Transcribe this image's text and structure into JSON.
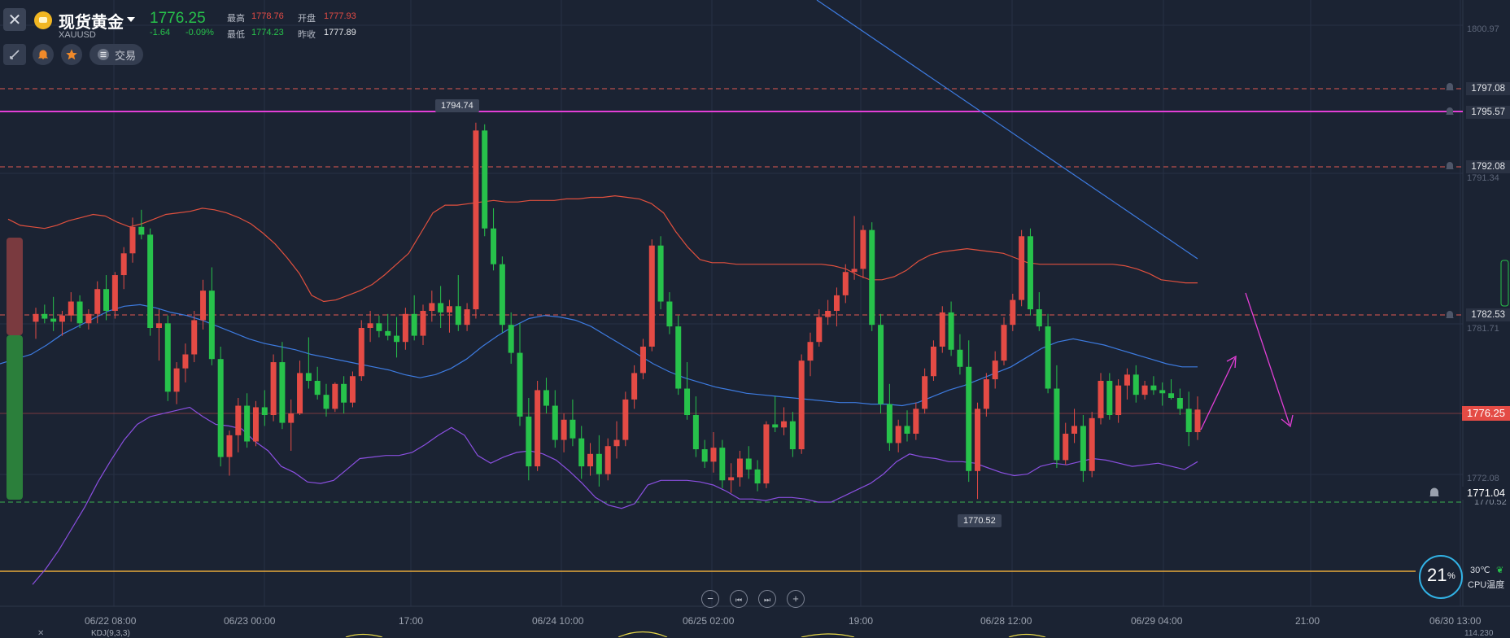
{
  "header": {
    "symbol_name": "现货黄金",
    "symbol_code": "XAUUSD",
    "last_price": "1776.25",
    "change": "-1.64",
    "change_pct": "-0.09%",
    "high_label": "最高",
    "high_value": "1778.76",
    "open_label": "开盘",
    "open_value": "1777.93",
    "low_label": "最低",
    "low_value": "1774.23",
    "prev_close_label": "昨收",
    "prev_close_value": "1777.89"
  },
  "toolbar": {
    "trade_label": "交易"
  },
  "price_axis": {
    "ticks": [
      "1800.97",
      "1791.34",
      "1781.71",
      "1772.08"
    ],
    "level_tags": [
      {
        "label": "1797.08",
        "style": "dashed",
        "color": "#e05a52"
      },
      {
        "label": "1795.57",
        "style": "solid",
        "color": "#e23fd6"
      },
      {
        "label": "1792.08",
        "style": "dashed",
        "color": "#e05a52"
      },
      {
        "label": "1782.53",
        "style": "dashed",
        "color": "#e05a52"
      },
      {
        "label": "1776.25",
        "style": "current",
        "color": "#e44b45"
      },
      {
        "label": "1771.04",
        "style": "dashed",
        "color": "#3bb24f"
      }
    ],
    "partial_tag": "1770.52"
  },
  "annotations": {
    "high_marker": "1794.74",
    "low_marker": "1770.52"
  },
  "time_axis": {
    "labels": [
      "06/22 08:00",
      "06/23 00:00",
      "17:00",
      "06/24 10:00",
      "06/25 02:00",
      "19:00",
      "06/28 12:00",
      "06/29 04:00",
      "21:00",
      "06/30 13:00"
    ]
  },
  "bottom_panel": {
    "indicator_label": "KDJ(9,3,3)",
    "right_value": "114.230"
  },
  "cpu": {
    "percent": "21",
    "percent_sign": "%",
    "temp": "30℃",
    "label": "CPU温度"
  },
  "colors": {
    "background": "#1b2333",
    "up": "#e44b45",
    "down": "#27c24b",
    "magenta": "#e23fd6",
    "upper_band": "#e0503e",
    "mid_band": "#3d7be0",
    "lower_band": "#8a4fe0"
  },
  "chart_data": {
    "type": "candlestick",
    "ylim": [
      1765.5,
      1803.0
    ],
    "candles": [
      [
        1781.9,
        1782.8,
        1780.8,
        1782.4
      ],
      [
        1782.4,
        1783.0,
        1781.8,
        1782.1
      ],
      [
        1782.1,
        1783.5,
        1781.3,
        1781.9
      ],
      [
        1781.9,
        1782.6,
        1781.0,
        1782.3
      ],
      [
        1782.3,
        1783.8,
        1781.9,
        1783.2
      ],
      [
        1783.2,
        1783.6,
        1781.5,
        1781.8
      ],
      [
        1781.8,
        1782.7,
        1781.4,
        1782.4
      ],
      [
        1782.4,
        1784.5,
        1781.8,
        1784.0
      ],
      [
        1784.0,
        1784.9,
        1782.0,
        1782.6
      ],
      [
        1782.6,
        1785.1,
        1782.1,
        1784.9
      ],
      [
        1784.9,
        1786.7,
        1784.0,
        1786.3
      ],
      [
        1786.3,
        1788.6,
        1785.7,
        1788.0
      ],
      [
        1788.0,
        1789.1,
        1787.2,
        1787.5
      ],
      [
        1787.5,
        1787.9,
        1781.0,
        1781.5
      ],
      [
        1781.5,
        1782.7,
        1779.4,
        1781.8
      ],
      [
        1781.8,
        1782.3,
        1776.8,
        1777.4
      ],
      [
        1777.4,
        1779.3,
        1776.6,
        1778.9
      ],
      [
        1778.9,
        1780.5,
        1778.0,
        1779.8
      ],
      [
        1779.8,
        1782.6,
        1779.3,
        1782.0
      ],
      [
        1782.0,
        1784.6,
        1781.4,
        1783.9
      ],
      [
        1783.9,
        1785.4,
        1779.1,
        1779.5
      ],
      [
        1779.5,
        1780.3,
        1772.6,
        1773.2
      ],
      [
        1773.2,
        1774.9,
        1772.0,
        1774.6
      ],
      [
        1774.6,
        1777.0,
        1773.5,
        1776.5
      ],
      [
        1776.5,
        1777.3,
        1773.8,
        1774.2
      ],
      [
        1774.2,
        1776.8,
        1773.9,
        1776.4
      ],
      [
        1776.4,
        1777.5,
        1775.2,
        1775.9
      ],
      [
        1775.9,
        1779.8,
        1775.5,
        1779.3
      ],
      [
        1779.3,
        1780.6,
        1775.0,
        1775.4
      ],
      [
        1775.4,
        1776.9,
        1773.6,
        1776.0
      ],
      [
        1776.0,
        1779.4,
        1775.9,
        1778.6
      ],
      [
        1778.6,
        1780.9,
        1777.6,
        1778.1
      ],
      [
        1778.1,
        1779.0,
        1776.9,
        1777.2
      ],
      [
        1777.2,
        1777.9,
        1775.8,
        1776.3
      ],
      [
        1776.3,
        1778.0,
        1776.1,
        1777.9
      ],
      [
        1777.9,
        1778.4,
        1776.0,
        1776.7
      ],
      [
        1776.7,
        1778.7,
        1776.4,
        1778.4
      ],
      [
        1778.4,
        1782.0,
        1778.1,
        1781.5
      ],
      [
        1781.5,
        1782.6,
        1780.6,
        1781.8
      ],
      [
        1781.8,
        1782.3,
        1780.9,
        1781.3
      ],
      [
        1781.3,
        1782.4,
        1780.7,
        1781.0
      ],
      [
        1781.0,
        1782.2,
        1779.6,
        1780.6
      ],
      [
        1780.6,
        1782.8,
        1780.1,
        1782.4
      ],
      [
        1782.4,
        1783.6,
        1780.7,
        1781.0
      ],
      [
        1781.0,
        1783.0,
        1780.4,
        1782.6
      ],
      [
        1782.6,
        1783.9,
        1781.9,
        1783.1
      ],
      [
        1783.1,
        1784.2,
        1781.5,
        1782.5
      ],
      [
        1782.5,
        1783.3,
        1781.2,
        1782.9
      ],
      [
        1782.9,
        1784.9,
        1781.3,
        1781.7
      ],
      [
        1781.7,
        1783.1,
        1781.3,
        1782.7
      ],
      [
        1782.7,
        1794.7,
        1782.1,
        1794.2
      ],
      [
        1794.2,
        1794.6,
        1787.4,
        1787.9
      ],
      [
        1787.9,
        1789.2,
        1785.2,
        1785.6
      ],
      [
        1785.6,
        1786.1,
        1781.2,
        1781.7
      ],
      [
        1781.7,
        1782.5,
        1779.2,
        1779.9
      ],
      [
        1779.9,
        1781.8,
        1775.2,
        1775.8
      ],
      [
        1775.8,
        1777.0,
        1771.7,
        1772.6
      ],
      [
        1772.6,
        1778.1,
        1772.3,
        1777.5
      ],
      [
        1777.5,
        1778.3,
        1776.0,
        1776.5
      ],
      [
        1776.5,
        1777.5,
        1773.8,
        1774.3
      ],
      [
        1774.3,
        1776.0,
        1773.5,
        1775.6
      ],
      [
        1775.6,
        1776.9,
        1773.9,
        1774.4
      ],
      [
        1774.4,
        1775.2,
        1771.8,
        1772.6
      ],
      [
        1772.6,
        1774.1,
        1772.0,
        1773.4
      ],
      [
        1773.4,
        1774.6,
        1771.3,
        1772.1
      ],
      [
        1772.1,
        1774.4,
        1771.7,
        1773.9
      ],
      [
        1773.9,
        1775.5,
        1773.1,
        1774.3
      ],
      [
        1774.3,
        1777.4,
        1773.9,
        1776.9
      ],
      [
        1776.9,
        1779.1,
        1776.3,
        1778.6
      ],
      [
        1778.6,
        1780.8,
        1778.2,
        1780.3
      ],
      [
        1780.3,
        1787.2,
        1780.0,
        1786.8
      ],
      [
        1786.8,
        1787.4,
        1782.7,
        1783.2
      ],
      [
        1783.2,
        1783.8,
        1781.1,
        1781.6
      ],
      [
        1781.6,
        1782.3,
        1777.2,
        1777.6
      ],
      [
        1777.6,
        1779.3,
        1775.6,
        1775.9
      ],
      [
        1775.9,
        1777.1,
        1773.2,
        1773.7
      ],
      [
        1773.7,
        1774.3,
        1772.5,
        1772.9
      ],
      [
        1772.9,
        1774.8,
        1772.2,
        1773.8
      ],
      [
        1773.8,
        1774.3,
        1771.2,
        1771.7
      ],
      [
        1771.7,
        1772.8,
        1770.9,
        1771.9
      ],
      [
        1771.9,
        1773.6,
        1771.3,
        1773.1
      ],
      [
        1773.1,
        1773.9,
        1771.8,
        1772.4
      ],
      [
        1772.4,
        1773.0,
        1771.0,
        1771.5
      ],
      [
        1771.5,
        1775.5,
        1771.2,
        1775.3
      ],
      [
        1775.3,
        1777.1,
        1774.8,
        1775.1
      ],
      [
        1775.1,
        1776.4,
        1774.6,
        1775.5
      ],
      [
        1775.5,
        1776.1,
        1773.2,
        1773.7
      ],
      [
        1773.7,
        1779.8,
        1773.4,
        1779.4
      ],
      [
        1779.4,
        1781.2,
        1778.4,
        1780.6
      ],
      [
        1780.6,
        1782.7,
        1780.3,
        1782.2
      ],
      [
        1782.2,
        1783.3,
        1781.7,
        1782.6
      ],
      [
        1782.6,
        1784.1,
        1781.6,
        1783.6
      ],
      [
        1783.6,
        1785.6,
        1783.1,
        1785.1
      ],
      [
        1785.1,
        1788.7,
        1784.6,
        1785.3
      ],
      [
        1785.3,
        1788.1,
        1784.7,
        1787.8
      ],
      [
        1787.8,
        1788.3,
        1781.3,
        1781.7
      ],
      [
        1781.7,
        1782.4,
        1776.0,
        1776.6
      ],
      [
        1776.6,
        1777.9,
        1773.6,
        1774.1
      ],
      [
        1774.1,
        1775.6,
        1773.5,
        1775.2
      ],
      [
        1775.2,
        1776.2,
        1774.2,
        1774.7
      ],
      [
        1774.7,
        1776.7,
        1774.3,
        1776.3
      ],
      [
        1776.3,
        1778.9,
        1776.0,
        1778.4
      ],
      [
        1778.4,
        1780.7,
        1778.1,
        1780.3
      ],
      [
        1780.3,
        1782.9,
        1779.9,
        1782.5
      ],
      [
        1782.5,
        1783.2,
        1779.7,
        1780.1
      ],
      [
        1780.1,
        1781.1,
        1778.5,
        1779.0
      ],
      [
        1779.0,
        1780.7,
        1771.6,
        1772.3
      ],
      [
        1772.3,
        1776.7,
        1770.5,
        1776.3
      ],
      [
        1776.3,
        1778.6,
        1775.8,
        1778.2
      ],
      [
        1778.2,
        1780.0,
        1777.6,
        1779.4
      ],
      [
        1779.4,
        1782.2,
        1779.1,
        1781.7
      ],
      [
        1781.7,
        1783.7,
        1781.3,
        1783.3
      ],
      [
        1783.3,
        1787.8,
        1782.9,
        1787.4
      ],
      [
        1787.4,
        1787.9,
        1782.3,
        1782.7
      ],
      [
        1782.7,
        1783.8,
        1781.3,
        1781.6
      ],
      [
        1781.6,
        1782.4,
        1777.3,
        1777.6
      ],
      [
        1777.6,
        1779.1,
        1772.5,
        1773.0
      ],
      [
        1773.0,
        1775.4,
        1772.7,
        1774.7
      ],
      [
        1774.7,
        1776.3,
        1774.1,
        1775.2
      ],
      [
        1775.2,
        1775.9,
        1771.6,
        1772.3
      ],
      [
        1772.3,
        1776.1,
        1771.9,
        1775.7
      ],
      [
        1775.7,
        1778.6,
        1775.3,
        1778.1
      ],
      [
        1778.1,
        1778.6,
        1775.6,
        1775.9
      ],
      [
        1775.9,
        1778.2,
        1775.4,
        1777.8
      ],
      [
        1777.8,
        1778.9,
        1776.9,
        1778.5
      ],
      [
        1778.5,
        1779.1,
        1776.7,
        1777.2
      ],
      [
        1777.2,
        1778.1,
        1776.9,
        1777.8
      ],
      [
        1777.8,
        1778.4,
        1777.2,
        1777.5
      ],
      [
        1777.5,
        1778.0,
        1776.5,
        1777.3
      ],
      [
        1777.3,
        1778.2,
        1776.9,
        1777.0
      ],
      [
        1777.0,
        1777.6,
        1775.9,
        1776.3
      ],
      [
        1776.3,
        1777.4,
        1773.9,
        1774.8
      ],
      [
        1774.8,
        1777.1,
        1774.3,
        1776.25
      ]
    ],
    "upper_band": [
      1788.5,
      1788.1,
      1788.0,
      1787.9,
      1788.1,
      1788.4,
      1788.6,
      1788.8,
      1788.7,
      1788.3,
      1788.0,
      1788.2,
      1788.5,
      1788.8,
      1788.9,
      1789.0,
      1789.2,
      1789.1,
      1788.9,
      1788.6,
      1788.2,
      1787.6,
      1786.9,
      1786.0,
      1785.0,
      1783.6,
      1783.2,
      1783.3,
      1783.6,
      1783.9,
      1784.3,
      1784.9,
      1785.6,
      1786.3,
      1787.6,
      1788.9,
      1789.4,
      1789.4,
      1789.5,
      1789.6,
      1789.7,
      1789.6,
      1789.6,
      1789.7,
      1789.7,
      1789.7,
      1789.8,
      1789.8,
      1789.9,
      1789.9,
      1790.0,
      1789.9,
      1789.8,
      1789.5,
      1788.9,
      1787.7,
      1786.7,
      1785.9,
      1785.7,
      1785.7,
      1785.6,
      1785.6,
      1785.6,
      1785.6,
      1785.6,
      1785.6,
      1785.6,
      1785.6,
      1785.5,
      1785.3,
      1784.9,
      1784.6,
      1784.6,
      1784.8,
      1785.2,
      1785.8,
      1786.2,
      1786.4,
      1786.5,
      1786.6,
      1786.5,
      1786.4,
      1786.3,
      1786.0,
      1785.7,
      1785.6,
      1785.6,
      1785.6,
      1785.6,
      1785.6,
      1785.6,
      1785.6,
      1785.5,
      1785.3,
      1785.0,
      1784.6,
      1784.5,
      1784.4,
      1784.4
    ],
    "mid_band": [
      1779.2,
      1779.5,
      1779.8,
      1780.4,
      1781.1,
      1781.6,
      1782.1,
      1782.6,
      1782.9,
      1783.0,
      1782.8,
      1782.5,
      1782.3,
      1782.0,
      1781.6,
      1781.2,
      1780.8,
      1780.5,
      1780.3,
      1780.1,
      1779.8,
      1779.6,
      1779.4,
      1779.2,
      1779.0,
      1778.8,
      1778.5,
      1778.3,
      1778.5,
      1778.9,
      1779.5,
      1780.3,
      1781.0,
      1781.6,
      1782.1,
      1782.3,
      1782.2,
      1782.0,
      1781.6,
      1781.0,
      1780.4,
      1779.8,
      1779.2,
      1778.7,
      1778.3,
      1778.0,
      1777.7,
      1777.5,
      1777.3,
      1777.2,
      1777.1,
      1777.0,
      1776.9,
      1776.8,
      1776.7,
      1776.7,
      1776.6,
      1776.6,
      1776.5,
      1776.7,
      1777.1,
      1777.5,
      1777.8,
      1778.2,
      1778.6,
      1779.0,
      1779.6,
      1780.2,
      1780.6,
      1780.8,
      1780.6,
      1780.4,
      1780.1,
      1779.8,
      1779.5,
      1779.2,
      1779.0,
      1779.0
    ],
    "lower_band": [
      1765.0,
      1766.0,
      1767.2,
      1768.6,
      1770.0,
      1771.6,
      1773.0,
      1774.3,
      1775.3,
      1775.8,
      1776.0,
      1776.2,
      1776.4,
      1775.8,
      1775.3,
      1775.2,
      1775.0,
      1774.2,
      1773.6,
      1772.6,
      1772.2,
      1771.6,
      1771.5,
      1771.7,
      1772.4,
      1773.1,
      1773.2,
      1773.3,
      1773.3,
      1773.5,
      1774.0,
      1774.6,
      1775.1,
      1774.6,
      1773.3,
      1772.8,
      1773.2,
      1773.5,
      1773.6,
      1773.4,
      1773.0,
      1772.3,
      1771.5,
      1770.6,
      1770.1,
      1769.9,
      1770.2,
      1771.4,
      1771.7,
      1771.7,
      1771.7,
      1771.6,
      1771.4,
      1771.0,
      1770.5,
      1770.5,
      1770.4,
      1770.6,
      1770.6,
      1770.5,
      1770.3,
      1770.3,
      1770.7,
      1771.1,
      1771.5,
      1772.1,
      1772.9,
      1773.4,
      1773.2,
      1773.1,
      1772.9,
      1772.9,
      1772.8,
      1772.5,
      1772.2,
      1772.0,
      1772.1,
      1772.6,
      1772.8,
      1772.7,
      1772.9,
      1773.1,
      1773.0,
      1772.8,
      1772.6,
      1772.7,
      1772.8,
      1772.6,
      1772.4,
      1772.9
    ]
  }
}
